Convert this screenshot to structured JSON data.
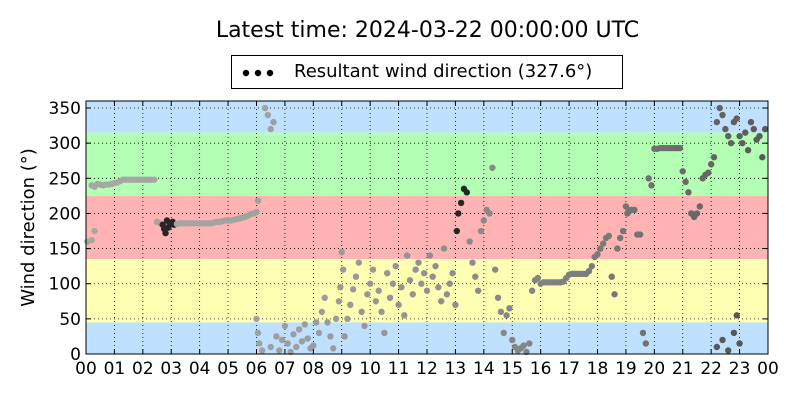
{
  "title": "Latest time: 2024-03-22 00:00:00 UTC",
  "chart_data": {
    "type": "scatter",
    "title": "Latest time: 2024-03-22 00:00:00 UTC",
    "xlabel": "",
    "ylabel": "Wind direction (°)",
    "xlim": [
      0,
      24
    ],
    "ylim": [
      0,
      360
    ],
    "x_ticks": [
      "00",
      "01",
      "02",
      "03",
      "04",
      "05",
      "06",
      "07",
      "08",
      "09",
      "10",
      "11",
      "12",
      "13",
      "14",
      "15",
      "16",
      "17",
      "18",
      "19",
      "20",
      "21",
      "22",
      "23",
      "00"
    ],
    "y_ticks": [
      0,
      50,
      100,
      150,
      200,
      250,
      300,
      350
    ],
    "grid": true,
    "legend_position": "top-center",
    "background_bands": [
      {
        "from": 0,
        "to": 45,
        "color": "#bfe0ff"
      },
      {
        "from": 45,
        "to": 135,
        "color": "#ffffb3"
      },
      {
        "from": 135,
        "to": 225,
        "color": "#ffb3b3"
      },
      {
        "from": 225,
        "to": 315,
        "color": "#b3ffb3"
      },
      {
        "from": 315,
        "to": 360,
        "color": "#bfe0ff"
      }
    ],
    "series": [
      {
        "name": "Resultant wind direction (327.6°)",
        "color_light": "#a6a6a6",
        "color_dark": "#262626",
        "points": [
          [
            0.05,
            160
          ],
          [
            0.2,
            162
          ],
          [
            0.3,
            175
          ],
          [
            0.2,
            240
          ],
          [
            0.3,
            238
          ],
          [
            0.4,
            242
          ],
          [
            0.5,
            241
          ],
          [
            0.6,
            240
          ],
          [
            0.7,
            241
          ],
          [
            0.8,
            241
          ],
          [
            0.9,
            242
          ],
          [
            1.0,
            243
          ],
          [
            1.1,
            244
          ],
          [
            1.2,
            246
          ],
          [
            1.3,
            248
          ],
          [
            1.4,
            248
          ],
          [
            1.5,
            248
          ],
          [
            1.6,
            248
          ],
          [
            1.7,
            248
          ],
          [
            1.8,
            248
          ],
          [
            1.9,
            248
          ],
          [
            2.0,
            248
          ],
          [
            2.1,
            248
          ],
          [
            2.2,
            248
          ],
          [
            2.3,
            248
          ],
          [
            2.4,
            248
          ],
          [
            2.5,
            188
          ],
          [
            2.6,
            186
          ],
          [
            2.7,
            184
          ],
          [
            2.75,
            178
          ],
          [
            2.8,
            172
          ],
          [
            2.85,
            190
          ],
          [
            2.9,
            180
          ],
          [
            2.95,
            185
          ],
          [
            3.0,
            185
          ],
          [
            3.05,
            188
          ],
          [
            3.1,
            184
          ],
          [
            3.2,
            185
          ],
          [
            3.3,
            186
          ],
          [
            3.4,
            186
          ],
          [
            3.5,
            186
          ],
          [
            3.6,
            186
          ],
          [
            3.7,
            186
          ],
          [
            3.8,
            186
          ],
          [
            3.9,
            186
          ],
          [
            4.0,
            186
          ],
          [
            4.1,
            186
          ],
          [
            4.2,
            186
          ],
          [
            4.3,
            186
          ],
          [
            4.4,
            186
          ],
          [
            4.5,
            187
          ],
          [
            4.6,
            188
          ],
          [
            4.7,
            188
          ],
          [
            4.8,
            189
          ],
          [
            4.9,
            190
          ],
          [
            5.0,
            190
          ],
          [
            5.1,
            190
          ],
          [
            5.2,
            191
          ],
          [
            5.3,
            192
          ],
          [
            5.4,
            193
          ],
          [
            5.5,
            194
          ],
          [
            5.6,
            195
          ],
          [
            5.7,
            197
          ],
          [
            5.8,
            199
          ],
          [
            5.9,
            200
          ],
          [
            6.0,
            202
          ],
          [
            6.05,
            218
          ],
          [
            6.0,
            50
          ],
          [
            6.05,
            30
          ],
          [
            6.1,
            15
          ],
          [
            6.2,
            5
          ],
          [
            6.3,
            350
          ],
          [
            6.4,
            340
          ],
          [
            6.5,
            320
          ],
          [
            6.6,
            330
          ],
          [
            6.5,
            10
          ],
          [
            6.7,
            25
          ],
          [
            6.8,
            5
          ],
          [
            6.9,
            20
          ],
          [
            7.0,
            40
          ],
          [
            7.1,
            15
          ],
          [
            7.2,
            3
          ],
          [
            7.3,
            28
          ],
          [
            7.4,
            10
          ],
          [
            7.5,
            35
          ],
          [
            7.6,
            18
          ],
          [
            7.7,
            42
          ],
          [
            7.8,
            22
          ],
          [
            7.9,
            8
          ],
          [
            8.0,
            12
          ],
          [
            8.1,
            45
          ],
          [
            8.2,
            30
          ],
          [
            8.3,
            60
          ],
          [
            8.4,
            80
          ],
          [
            8.5,
            45
          ],
          [
            8.6,
            25
          ],
          [
            8.7,
            8
          ],
          [
            8.8,
            50
          ],
          [
            8.9,
            75
          ],
          [
            8.95,
            95
          ],
          [
            9.0,
            145
          ],
          [
            9.05,
            120
          ],
          [
            9.1,
            25
          ],
          [
            9.2,
            50
          ],
          [
            9.3,
            70
          ],
          [
            9.4,
            92
          ],
          [
            9.5,
            110
          ],
          [
            9.6,
            130
          ],
          [
            9.7,
            60
          ],
          [
            9.8,
            40
          ],
          [
            9.9,
            85
          ],
          [
            10.0,
            100
          ],
          [
            10.1,
            120
          ],
          [
            10.2,
            75
          ],
          [
            10.3,
            90
          ],
          [
            10.4,
            60
          ],
          [
            10.5,
            30
          ],
          [
            10.6,
            115
          ],
          [
            10.7,
            80
          ],
          [
            10.8,
            100
          ],
          [
            10.9,
            125
          ],
          [
            11.0,
            70
          ],
          [
            11.1,
            95
          ],
          [
            11.2,
            55
          ],
          [
            11.3,
            140
          ],
          [
            11.4,
            105
          ],
          [
            11.5,
            85
          ],
          [
            11.6,
            120
          ],
          [
            11.7,
            130
          ],
          [
            11.8,
            100
          ],
          [
            11.9,
            115
          ],
          [
            12.0,
            90
          ],
          [
            12.1,
            140
          ],
          [
            12.2,
            110
          ],
          [
            12.3,
            125
          ],
          [
            12.4,
            95
          ],
          [
            12.5,
            75
          ],
          [
            12.6,
            150
          ],
          [
            12.7,
            85
          ],
          [
            12.8,
            100
          ],
          [
            12.9,
            115
          ],
          [
            13.0,
            70
          ],
          [
            13.05,
            175
          ],
          [
            13.1,
            200
          ],
          [
            13.2,
            215
          ],
          [
            13.3,
            235
          ],
          [
            13.4,
            230
          ],
          [
            13.5,
            160
          ],
          [
            13.6,
            130
          ],
          [
            13.7,
            110
          ],
          [
            13.8,
            90
          ],
          [
            13.9,
            175
          ],
          [
            14.0,
            190
          ],
          [
            14.1,
            205
          ],
          [
            14.2,
            200
          ],
          [
            14.3,
            265
          ],
          [
            14.4,
            120
          ],
          [
            14.5,
            80
          ],
          [
            14.6,
            60
          ],
          [
            14.7,
            30
          ],
          [
            14.8,
            55
          ],
          [
            14.9,
            65
          ],
          [
            15.0,
            20
          ],
          [
            15.1,
            10
          ],
          [
            15.2,
            5
          ],
          [
            15.3,
            8
          ],
          [
            15.4,
            12
          ],
          [
            15.5,
            3
          ],
          [
            15.6,
            15
          ],
          [
            15.7,
            90
          ],
          [
            15.8,
            105
          ],
          [
            15.9,
            108
          ],
          [
            16.0,
            100
          ],
          [
            16.1,
            102
          ],
          [
            16.2,
            102
          ],
          [
            16.3,
            102
          ],
          [
            16.4,
            102
          ],
          [
            16.5,
            102
          ],
          [
            16.6,
            102
          ],
          [
            16.7,
            102
          ],
          [
            16.8,
            103
          ],
          [
            16.9,
            108
          ],
          [
            17.0,
            113
          ],
          [
            17.1,
            114
          ],
          [
            17.2,
            114
          ],
          [
            17.3,
            114
          ],
          [
            17.4,
            114
          ],
          [
            17.5,
            114
          ],
          [
            17.6,
            114
          ],
          [
            17.7,
            118
          ],
          [
            17.8,
            125
          ],
          [
            17.9,
            138
          ],
          [
            18.0,
            142
          ],
          [
            18.1,
            150
          ],
          [
            18.2,
            157
          ],
          [
            18.3,
            165
          ],
          [
            18.4,
            168
          ],
          [
            18.5,
            110
          ],
          [
            18.6,
            85
          ],
          [
            18.7,
            150
          ],
          [
            18.8,
            165
          ],
          [
            18.9,
            175
          ],
          [
            19.0,
            210
          ],
          [
            19.05,
            200
          ],
          [
            19.1,
            205
          ],
          [
            19.2,
            205
          ],
          [
            19.3,
            205
          ],
          [
            19.4,
            170
          ],
          [
            19.5,
            170
          ],
          [
            19.6,
            30
          ],
          [
            19.7,
            15
          ],
          [
            19.8,
            250
          ],
          [
            19.9,
            240
          ],
          [
            20.0,
            292
          ],
          [
            20.1,
            292
          ],
          [
            20.2,
            293
          ],
          [
            20.3,
            293
          ],
          [
            20.4,
            293
          ],
          [
            20.5,
            293
          ],
          [
            20.6,
            293
          ],
          [
            20.7,
            293
          ],
          [
            20.8,
            293
          ],
          [
            20.9,
            293
          ],
          [
            21.0,
            260
          ],
          [
            21.1,
            245
          ],
          [
            21.2,
            230
          ],
          [
            21.3,
            200
          ],
          [
            21.4,
            195
          ],
          [
            21.5,
            200
          ],
          [
            21.6,
            210
          ],
          [
            21.7,
            250
          ],
          [
            21.8,
            255
          ],
          [
            21.9,
            258
          ],
          [
            22.0,
            270
          ],
          [
            22.1,
            280
          ],
          [
            22.2,
            330
          ],
          [
            22.3,
            350
          ],
          [
            22.4,
            340
          ],
          [
            22.5,
            320
          ],
          [
            22.6,
            310
          ],
          [
            22.7,
            300
          ],
          [
            22.8,
            330
          ],
          [
            22.9,
            335
          ],
          [
            23.0,
            310
          ],
          [
            23.1,
            300
          ],
          [
            23.2,
            315
          ],
          [
            23.3,
            290
          ],
          [
            23.4,
            330
          ],
          [
            23.5,
            320
          ],
          [
            23.6,
            305
          ],
          [
            23.7,
            310
          ],
          [
            23.8,
            280
          ],
          [
            23.9,
            320
          ],
          [
            22.2,
            10
          ],
          [
            22.4,
            20
          ],
          [
            22.6,
            5
          ],
          [
            22.8,
            30
          ],
          [
            23.0,
            15
          ],
          [
            22.9,
            55
          ]
        ]
      }
    ]
  },
  "colors": {
    "band_blue": "#bfe0ff",
    "band_yellow": "#ffffb3",
    "band_red": "#ffb3b3",
    "band_green": "#b3ffb3",
    "point_light": "#a6a6a6",
    "point_dark": "#262626"
  }
}
